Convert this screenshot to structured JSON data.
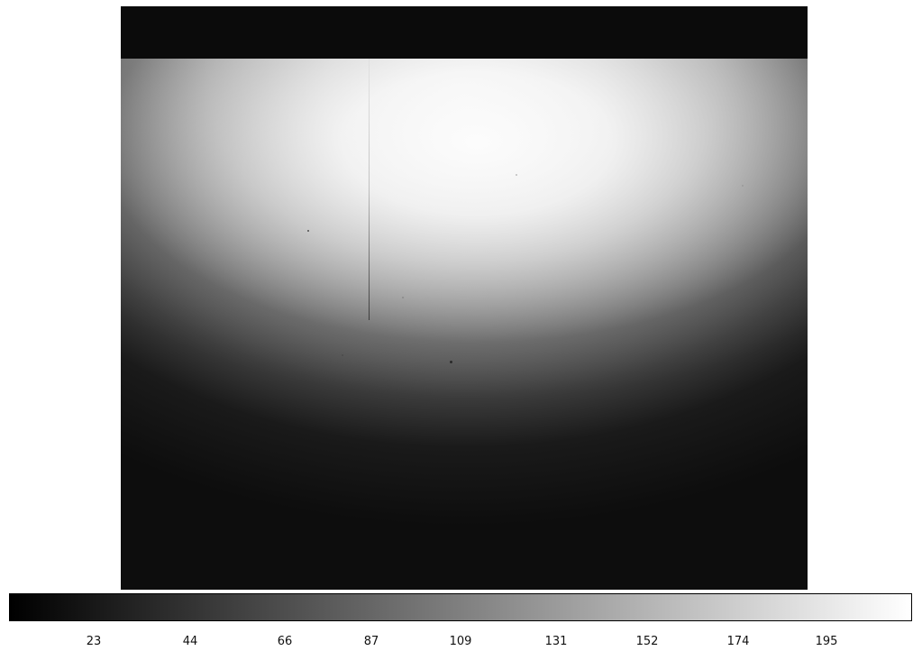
{
  "colorbar": {
    "tick_labels": [
      "23",
      "44",
      "66",
      "87",
      "109",
      "131",
      "152",
      "174",
      "195"
    ],
    "min_color": "#000000",
    "max_color": "#ffffff"
  }
}
